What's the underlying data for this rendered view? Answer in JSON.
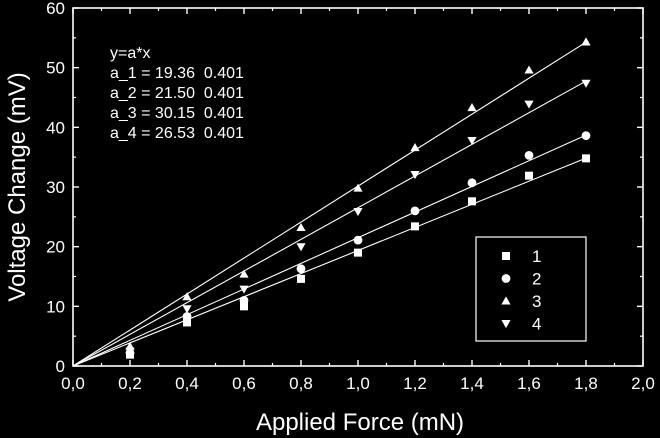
{
  "chart_data": {
    "type": "scatter",
    "title": "",
    "xlabel": "Applied Force (mN)",
    "ylabel": "Voltage Change (mV)",
    "xlim": [
      0.0,
      2.0
    ],
    "ylim": [
      0,
      60
    ],
    "x_ticks": [
      0.0,
      0.2,
      0.4,
      0.6,
      0.8,
      1.0,
      1.2,
      1.4,
      1.6,
      1.8,
      2.0
    ],
    "x_tick_labels": [
      "0,0",
      "0,2",
      "0,4",
      "0,6",
      "0,8",
      "1,0",
      "1,2",
      "1,4",
      "1,6",
      "1,8",
      "2,0"
    ],
    "y_ticks": [
      0,
      10,
      20,
      30,
      40,
      50,
      60
    ],
    "y_tick_labels": [
      "0",
      "10",
      "20",
      "30",
      "40",
      "50",
      "60"
    ],
    "grid": false,
    "legend_position": "lower-right",
    "background": "#000000",
    "foreground": "#ffffff",
    "annotation": {
      "lines": [
        "y=a*x",
        "a_1 = 19.36  0.401",
        "a_2 = 21.50  0.401",
        "a_3 = 30.15  0.401",
        "a_4 = 26.53  0.401"
      ]
    },
    "series": [
      {
        "name": "1",
        "marker": "square",
        "slope": 19.36,
        "x": [
          0.2,
          0.4,
          0.6,
          0.6,
          0.8,
          1.0,
          1.2,
          1.4,
          1.6,
          1.8
        ],
        "y": [
          1.9,
          7.3,
          10.0,
          10.4,
          14.6,
          19.0,
          23.4,
          27.6,
          31.9,
          34.8
        ]
      },
      {
        "name": "2",
        "marker": "circle",
        "slope": 21.5,
        "x": [
          0.2,
          0.4,
          0.6,
          0.8,
          1.0,
          1.2,
          1.4,
          1.6,
          1.8
        ],
        "y": [
          2.2,
          8.3,
          11.0,
          16.3,
          21.1,
          26.0,
          30.7,
          35.3,
          38.6
        ]
      },
      {
        "name": "3",
        "marker": "triangle-up",
        "slope": 30.15,
        "x": [
          0.2,
          0.4,
          0.6,
          0.8,
          1.0,
          1.2,
          1.4,
          1.6,
          1.8
        ],
        "y": [
          3.3,
          11.6,
          15.4,
          23.2,
          29.8,
          36.6,
          43.3,
          49.6,
          54.3
        ]
      },
      {
        "name": "4",
        "marker": "triangle-down",
        "slope": 26.53,
        "x": [
          0.2,
          0.4,
          0.6,
          0.8,
          1.0,
          1.2,
          1.4,
          1.6,
          1.8
        ],
        "y": [
          2.5,
          9.6,
          12.9,
          20.0,
          25.9,
          32.1,
          37.8,
          43.9,
          47.4
        ]
      }
    ]
  }
}
